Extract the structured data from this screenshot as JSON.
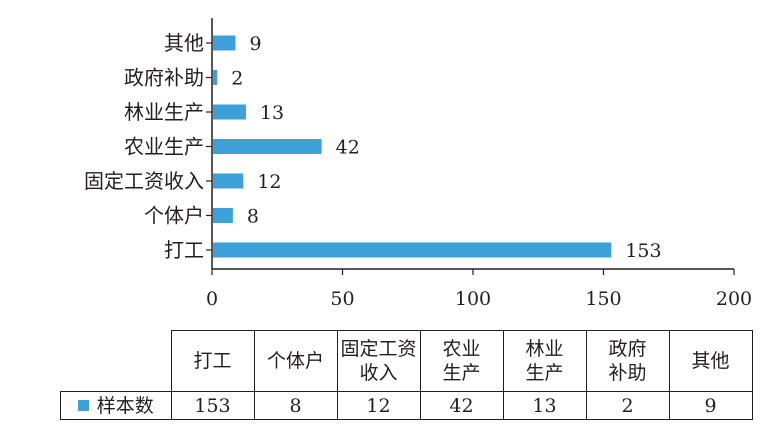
{
  "chart_data": {
    "type": "bar",
    "orientation": "horizontal",
    "categories": [
      "打工",
      "个体户",
      "固定工资收入",
      "农业生产",
      "林业生产",
      "政府补助",
      "其他"
    ],
    "series": [
      {
        "name": "样本数",
        "values": [
          153,
          8,
          12,
          42,
          13,
          2,
          9
        ],
        "color": "#3ea0d8"
      }
    ],
    "xlim": [
      0,
      200
    ],
    "xticks": [
      0,
      50,
      100,
      150,
      200
    ],
    "grid": false,
    "data_labels": true
  },
  "table": {
    "headers": [
      "打工",
      "个体户",
      "固定工资收入",
      "农业生产",
      "林业生产",
      "政府补助",
      "其他"
    ],
    "legend_label": "样本数",
    "values": [
      "153",
      "8",
      "12",
      "42",
      "13",
      "2",
      "9"
    ]
  }
}
